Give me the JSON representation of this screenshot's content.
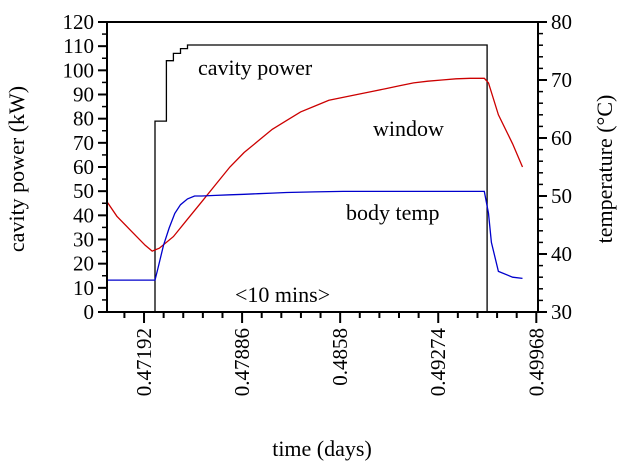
{
  "chart_data": {
    "type": "line",
    "title": "",
    "xlabel": "time (days)",
    "ylabel_left": "cavity power (kW)",
    "ylabel_right": "temperature (°C)",
    "xlim": [
      0.4693,
      0.4998
    ],
    "ylim_left": [
      0,
      120
    ],
    "ylim_right": [
      30,
      80
    ],
    "grid": false,
    "legend": "none",
    "x_ticks": [
      0.47192,
      0.47886,
      0.4858,
      0.49274,
      0.49968
    ],
    "x_tick_labels": [
      "0.47192",
      "0.47886",
      "0.4858",
      "0.49274",
      "0.49968"
    ],
    "y_left_ticks": [
      0,
      10,
      20,
      30,
      40,
      50,
      60,
      70,
      80,
      90,
      100,
      110,
      120
    ],
    "y_left_tick_labels": [
      "0",
      "10",
      "20",
      "30",
      "40",
      "50",
      "60",
      "70",
      "80",
      "90",
      "100",
      "110",
      "120"
    ],
    "y_right_ticks": [
      30,
      40,
      50,
      60,
      70,
      80
    ],
    "y_right_tick_labels": [
      "30",
      "40",
      "50",
      "60",
      "70",
      "80"
    ],
    "annotations": {
      "cavity_power": "cavity power",
      "window": "window",
      "body_temp": "body temp",
      "interval": "<10 mins>"
    },
    "series": [
      {
        "key": "cavity_power",
        "axis": "left",
        "color": "#000000",
        "x": [
          0.4693,
          0.4727,
          0.4727,
          0.4735,
          0.4735,
          0.474,
          0.474,
          0.4745,
          0.4745,
          0.475,
          0.475,
          0.4962,
          0.4962,
          0.4998
        ],
        "y": [
          0,
          0,
          79,
          79,
          104,
          104,
          107,
          107,
          109,
          109,
          110.5,
          110.5,
          0,
          0
        ]
      },
      {
        "key": "window",
        "axis": "right",
        "color": "#cc0000",
        "x": [
          0.4693,
          0.47,
          0.471,
          0.472,
          0.4725,
          0.473,
          0.474,
          0.475,
          0.476,
          0.477,
          0.478,
          0.479,
          0.48,
          0.481,
          0.482,
          0.483,
          0.484,
          0.485,
          0.486,
          0.487,
          0.488,
          0.489,
          0.49,
          0.491,
          0.492,
          0.493,
          0.494,
          0.495,
          0.496,
          0.4963,
          0.497,
          0.498,
          0.4987
        ],
        "y": [
          49,
          46.5,
          44,
          41.5,
          40.5,
          41,
          43,
          46,
          49,
          52,
          55,
          57.5,
          59.5,
          61.5,
          63,
          64.5,
          65.5,
          66.5,
          67,
          67.5,
          68,
          68.5,
          69,
          69.5,
          69.8,
          70,
          70.2,
          70.3,
          70.3,
          69.5,
          64,
          59,
          55
        ]
      },
      {
        "key": "body_temp",
        "axis": "right",
        "color": "#0000cc",
        "x": [
          0.4693,
          0.4727,
          0.4729,
          0.4733,
          0.4737,
          0.4741,
          0.4745,
          0.475,
          0.4755,
          0.476,
          0.477,
          0.478,
          0.479,
          0.48,
          0.481,
          0.482,
          0.484,
          0.486,
          0.488,
          0.49,
          0.492,
          0.494,
          0.496,
          0.4963,
          0.4965,
          0.497,
          0.498,
          0.4987
        ],
        "y": [
          35.5,
          35.5,
          37.5,
          41.5,
          44.5,
          47,
          48.5,
          49.5,
          50,
          50,
          50.1,
          50.2,
          50.3,
          50.4,
          50.5,
          50.6,
          50.7,
          50.8,
          50.8,
          50.8,
          50.8,
          50.8,
          50.8,
          47,
          42,
          37,
          36,
          35.8
        ]
      }
    ]
  }
}
